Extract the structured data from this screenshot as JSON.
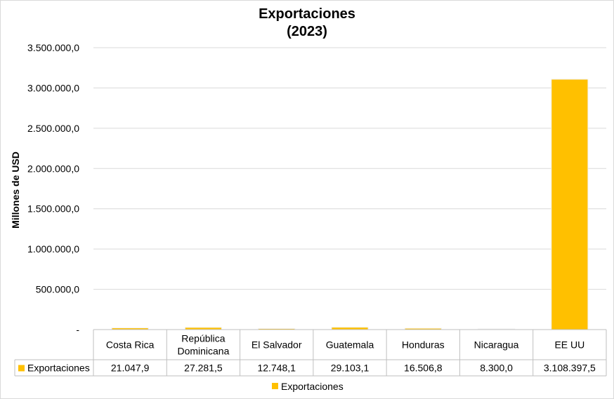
{
  "chart_data": {
    "type": "bar",
    "title": "Exportaciones",
    "subtitle": "(2023)",
    "ylabel": "Millones de USD",
    "xlabel": "",
    "categories": [
      [
        "Costa Rica"
      ],
      [
        "República",
        "Dominicana"
      ],
      [
        "El Salvador"
      ],
      [
        "Guatemala"
      ],
      [
        "Honduras"
      ],
      [
        "Nicaragua"
      ],
      [
        "EE UU"
      ]
    ],
    "series": [
      {
        "name": "Exportaciones",
        "color": "#FFC000",
        "values": [
          21047.9,
          27281.5,
          12748.1,
          29103.1,
          16506.8,
          8300.0,
          3108397.5
        ],
        "value_labels": [
          "21.047,9",
          "27.281,5",
          "12.748,1",
          "29.103,1",
          "16.506,8",
          "8.300,0",
          "3.108.397,5"
        ]
      }
    ],
    "ylim": [
      0,
      3500000
    ],
    "yticks": [
      {
        "value": 0,
        "label": "-"
      },
      {
        "value": 500000,
        "label": "500.000,0"
      },
      {
        "value": 1000000,
        "label": "1.000.000,0"
      },
      {
        "value": 1500000,
        "label": "1.500.000,0"
      },
      {
        "value": 2000000,
        "label": "2.000.000,0"
      },
      {
        "value": 2500000,
        "label": "2.500.000,0"
      },
      {
        "value": 3000000,
        "label": "3.000.000,0"
      },
      {
        "value": 3500000,
        "label": "3.500.000,0"
      }
    ],
    "grid": true,
    "data_table": true,
    "legend": {
      "position": "bottom",
      "label": "Exportaciones"
    }
  }
}
